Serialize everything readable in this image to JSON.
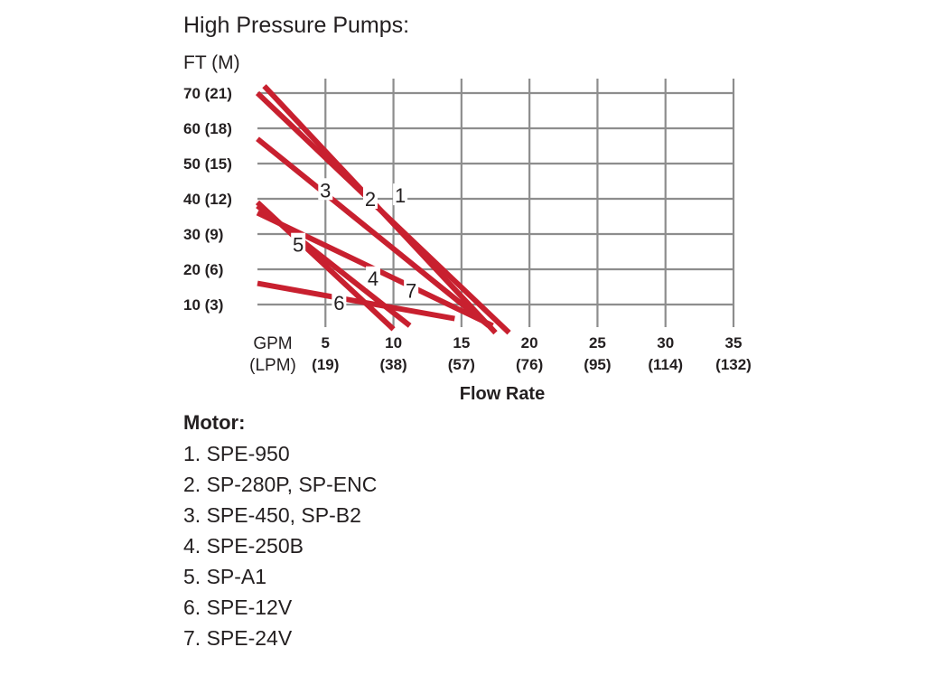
{
  "title": "High Pressure Pumps:",
  "chart_data": {
    "type": "line",
    "title": "High Pressure Pumps:",
    "ylabel": "FT (M)",
    "xlabel": "Flow Rate",
    "xlabel_left": [
      "GPM",
      "(LPM)"
    ],
    "xlim": [
      0,
      35
    ],
    "ylim": [
      0,
      75
    ],
    "grid": true,
    "x_ticks": [
      {
        "value": 5,
        "label": "5",
        "sublabel": "(19)"
      },
      {
        "value": 10,
        "label": "10",
        "sublabel": "(38)"
      },
      {
        "value": 15,
        "label": "15",
        "sublabel": "(57)"
      },
      {
        "value": 20,
        "label": "20",
        "sublabel": "(76)"
      },
      {
        "value": 25,
        "label": "25",
        "sublabel": "(95)"
      },
      {
        "value": 30,
        "label": "30",
        "sublabel": "(114)"
      },
      {
        "value": 35,
        "label": "35",
        "sublabel": "(132)"
      }
    ],
    "y_ticks": [
      {
        "value": 10,
        "label": "10 (3)"
      },
      {
        "value": 20,
        "label": "20 (6)"
      },
      {
        "value": 30,
        "label": "30 (9)"
      },
      {
        "value": 40,
        "label": "40 (12)"
      },
      {
        "value": 50,
        "label": "50 (15)"
      },
      {
        "value": 60,
        "label": "60 (18)"
      },
      {
        "value": 70,
        "label": "70 (21)"
      }
    ],
    "series": [
      {
        "name": "1",
        "x": [
          0.5,
          17.5
        ],
        "y": [
          72,
          2
        ],
        "label_at": [
          10.5,
          41
        ]
      },
      {
        "name": "2",
        "x": [
          0,
          18.5
        ],
        "y": [
          70,
          2
        ],
        "label_at": [
          8.3,
          40
        ]
      },
      {
        "name": "3",
        "x": [
          0,
          17
        ],
        "y": [
          57,
          4
        ],
        "label_at": [
          5,
          42.5
        ]
      },
      {
        "name": "4",
        "x": [
          0,
          11.2
        ],
        "y": [
          38,
          4
        ],
        "label_at": [
          8.5,
          17.5
        ]
      },
      {
        "name": "5",
        "x": [
          0,
          10
        ],
        "y": [
          39,
          3
        ],
        "label_at": [
          3,
          27
        ]
      },
      {
        "name": "6",
        "x": [
          0,
          14.5
        ],
        "y": [
          16,
          6
        ],
        "label_at": [
          6,
          10.5
        ]
      },
      {
        "name": "7",
        "x": [
          0,
          17.3
        ],
        "y": [
          36,
          4
        ],
        "label_at": [
          11.3,
          14
        ]
      }
    ],
    "line_color": "#c8202f"
  },
  "legend": {
    "title": "Motor:",
    "items": [
      "1. SPE-950",
      "2. SP-280P, SP-ENC",
      "3. SPE-450, SP-B2",
      "4. SPE-250B",
      "5. SP-A1",
      "6. SPE-12V",
      "7. SPE-24V"
    ]
  }
}
